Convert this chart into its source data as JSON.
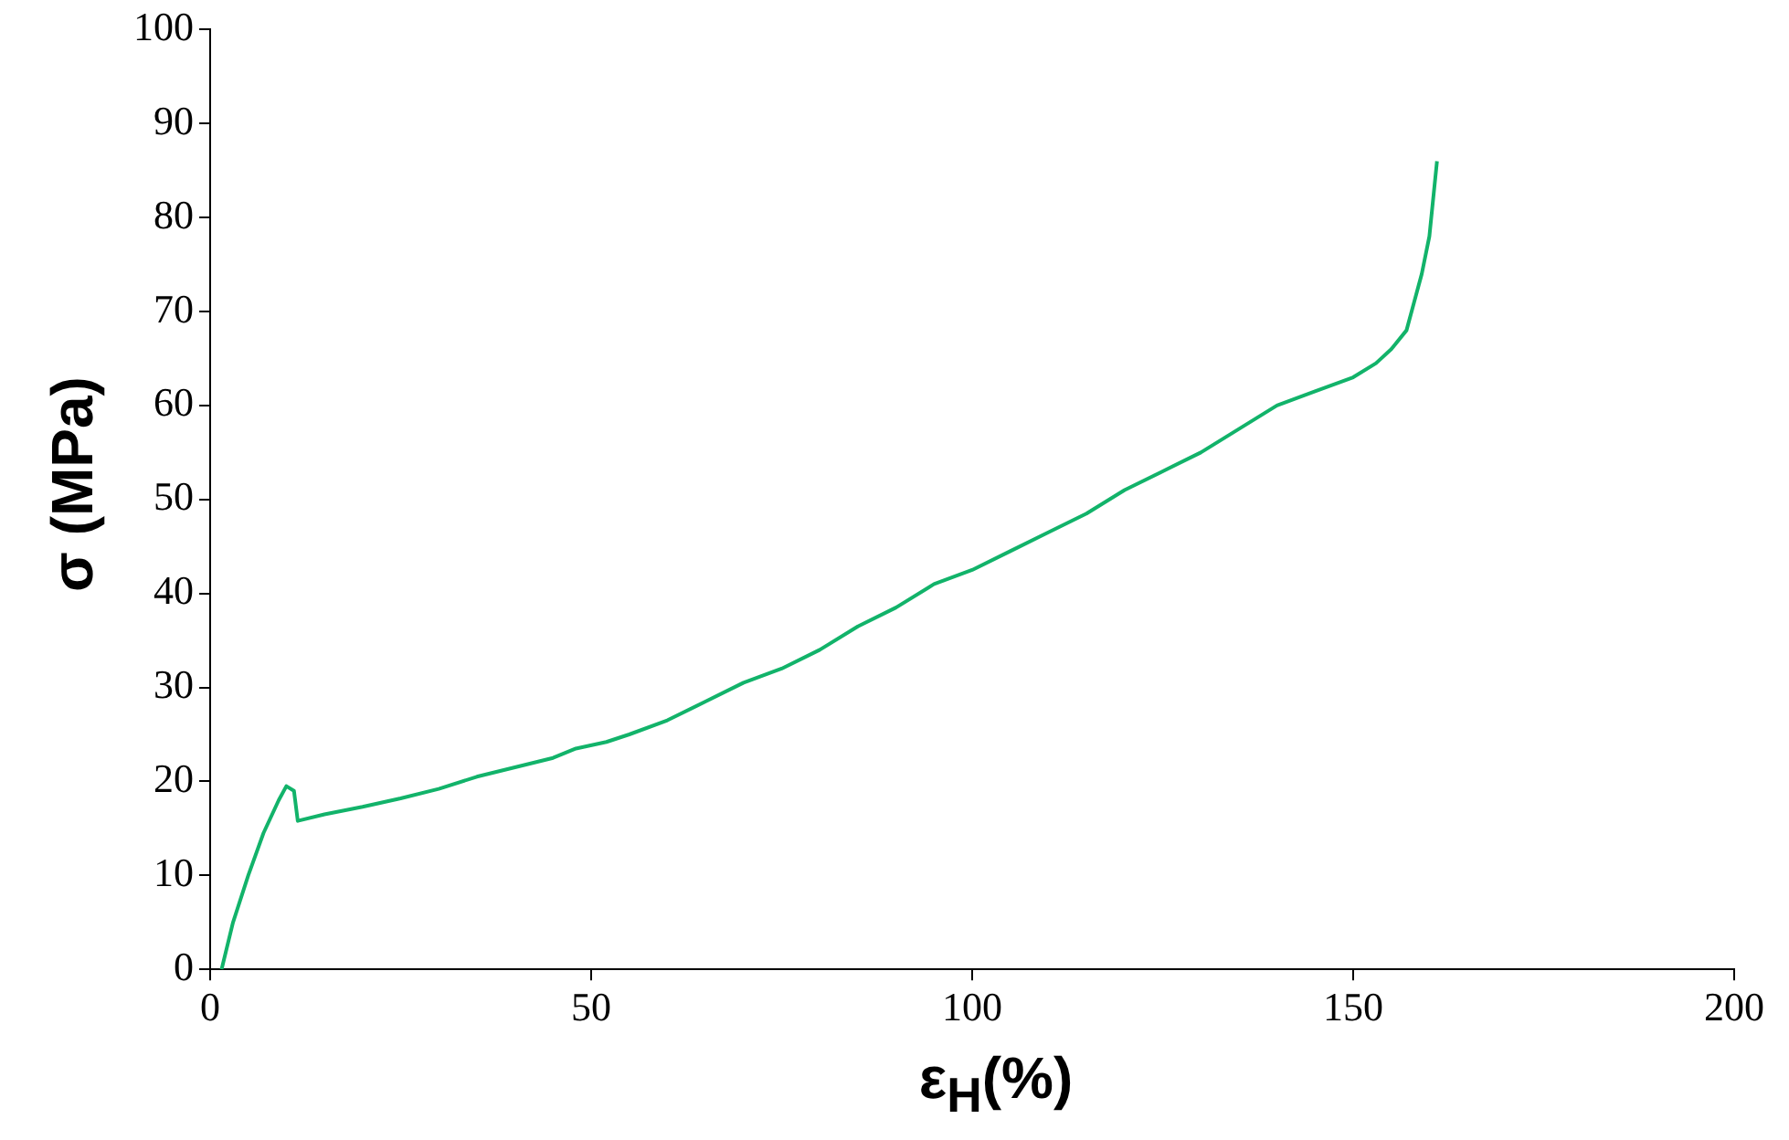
{
  "chart_data": {
    "type": "line",
    "xlabel": "ε$_{H}$(%)",
    "ylabel": "σ (MPa)",
    "xlim": [
      0,
      200
    ],
    "xticks": [
      0,
      50,
      100,
      150,
      200
    ],
    "ylim": [
      0,
      100
    ],
    "yticks": [
      0,
      10,
      20,
      30,
      40,
      50,
      60,
      70,
      80,
      90,
      100
    ],
    "grid": false,
    "legend": false,
    "marker": "none",
    "line_style": "solid",
    "series": [
      {
        "color": "#12b36a",
        "x": [
          1.5,
          3,
          5,
          7,
          9,
          10,
          11,
          11.5,
          15,
          20,
          25,
          30,
          35,
          40,
          45,
          48,
          52,
          55,
          60,
          65,
          70,
          75,
          80,
          85,
          90,
          95,
          100,
          105,
          110,
          115,
          120,
          125,
          130,
          135,
          140,
          145,
          150,
          153,
          155,
          157,
          158,
          159,
          160,
          161
        ],
        "values": [
          0,
          5,
          10,
          14.5,
          18,
          19.5,
          19,
          15.8,
          16.5,
          17.3,
          18.2,
          19.2,
          20.5,
          21.5,
          22.5,
          23.5,
          24.2,
          25,
          26.5,
          28.5,
          30.5,
          32,
          34,
          36.5,
          38.5,
          41,
          42.5,
          44.5,
          46.5,
          48.5,
          51,
          53,
          55,
          57.5,
          60,
          61.5,
          63,
          64.5,
          66,
          68,
          71,
          74,
          78,
          86
        ]
      }
    ]
  }
}
